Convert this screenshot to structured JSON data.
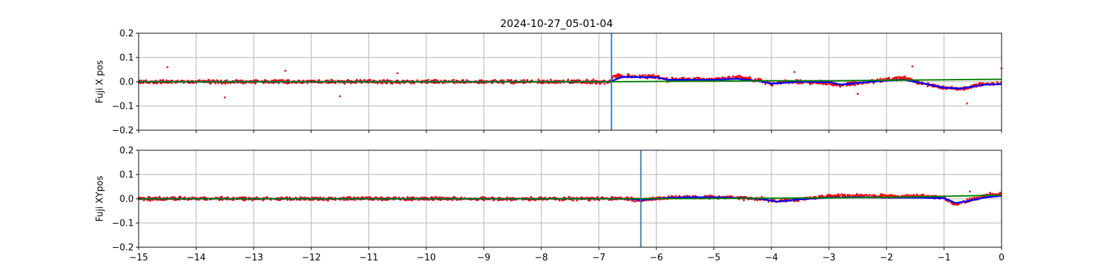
{
  "title": "2024-10-27_05-01-04",
  "colors": {
    "scatter": "#ff0000",
    "smooth": "#0000ff",
    "baseline": "#008000",
    "marker_line": "#1f77b4",
    "grid": "#b0b0b0"
  },
  "chart_data": [
    {
      "type": "scatter",
      "ylabel": "Fuji X pos",
      "xlim": [
        -15,
        0
      ],
      "ylim": [
        -0.2,
        0.2
      ],
      "xticks": [
        -15,
        -14,
        -13,
        -12,
        -11,
        -10,
        -9,
        -8,
        -7,
        -6,
        -5,
        -4,
        -3,
        -2,
        -1,
        0
      ],
      "xtick_labels_visible": false,
      "yticks": [
        -0.2,
        -0.1,
        0.0,
        0.1,
        0.2
      ],
      "ytick_labels": [
        "−0.2",
        "−0.1",
        "0.0",
        "0.1",
        "0.2"
      ],
      "grid": true,
      "vertical_marker_x": -6.78,
      "series": [
        {
          "role": "scatter",
          "color": "#ff0000",
          "profile": [
            [
              -15,
              0.0
            ],
            [
              -7.0,
              0.0
            ],
            [
              -6.8,
              0.0
            ],
            [
              -6.75,
              0.025
            ],
            [
              -6.0,
              0.02
            ],
            [
              -5.8,
              0.008
            ],
            [
              -5.0,
              0.01
            ],
            [
              -4.6,
              0.02
            ],
            [
              -4.2,
              0.005
            ],
            [
              -4.0,
              -0.01
            ],
            [
              -3.8,
              0.0
            ],
            [
              -3.5,
              0.0
            ],
            [
              -3.0,
              -0.005
            ],
            [
              -2.8,
              -0.015
            ],
            [
              -2.5,
              -0.005
            ],
            [
              -2.0,
              0.01
            ],
            [
              -1.7,
              0.015
            ],
            [
              -1.4,
              -0.005
            ],
            [
              -1.0,
              -0.025
            ],
            [
              -0.7,
              -0.03
            ],
            [
              -0.3,
              -0.01
            ],
            [
              0.0,
              -0.005
            ]
          ],
          "noise": 0.011,
          "outliers": [
            [
              -14.5,
              0.06
            ],
            [
              -13.5,
              -0.065
            ],
            [
              -12.45,
              0.045
            ],
            [
              -11.5,
              -0.06
            ],
            [
              -10.5,
              0.035
            ],
            [
              -3.6,
              0.04
            ],
            [
              -2.5,
              -0.05
            ],
            [
              -1.55,
              0.063
            ],
            [
              -0.6,
              -0.09
            ],
            [
              0.0,
              0.055
            ]
          ]
        },
        {
          "role": "smooth",
          "color": "#0000ff",
          "points": [
            [
              -15,
              0.0
            ],
            [
              -7.0,
              0.0
            ],
            [
              -6.8,
              0.0
            ],
            [
              -6.6,
              0.02
            ],
            [
              -6.0,
              0.018
            ],
            [
              -5.8,
              0.008
            ],
            [
              -5.0,
              0.008
            ],
            [
              -4.6,
              0.012
            ],
            [
              -4.2,
              0.002
            ],
            [
              -4.0,
              -0.008
            ],
            [
              -3.5,
              0.0
            ],
            [
              -3.0,
              -0.002
            ],
            [
              -2.8,
              -0.012
            ],
            [
              -2.5,
              -0.005
            ],
            [
              -2.0,
              0.005
            ],
            [
              -1.7,
              0.008
            ],
            [
              -1.4,
              -0.005
            ],
            [
              -1.0,
              -0.025
            ],
            [
              -0.7,
              -0.028
            ],
            [
              -0.3,
              -0.012
            ],
            [
              0.0,
              -0.01
            ]
          ]
        },
        {
          "role": "baseline",
          "color": "#008000",
          "points": [
            [
              -15,
              0.0
            ],
            [
              -7.0,
              0.0
            ],
            [
              -6.78,
              0.0
            ],
            [
              -4.0,
              0.004
            ],
            [
              -3.0,
              0.004
            ],
            [
              -2.0,
              0.006
            ],
            [
              -1.0,
              0.008
            ],
            [
              0.0,
              0.01
            ]
          ]
        }
      ]
    },
    {
      "type": "scatter",
      "ylabel": "Fuji XYpos",
      "xlim": [
        -15,
        0
      ],
      "ylim": [
        -0.2,
        0.2
      ],
      "xticks": [
        -15,
        -14,
        -13,
        -12,
        -11,
        -10,
        -9,
        -8,
        -7,
        -6,
        -5,
        -4,
        -3,
        -2,
        -1,
        0
      ],
      "xtick_labels": [
        "−15",
        "−14",
        "−13",
        "−12",
        "−11",
        "−10",
        "−9",
        "−8",
        "−7",
        "−6",
        "−5",
        "−4",
        "−3",
        "−2",
        "−1",
        "0"
      ],
      "xtick_labels_visible": true,
      "yticks": [
        -0.2,
        -0.1,
        0.0,
        0.1,
        0.2
      ],
      "ytick_labels": [
        "−0.2",
        "−0.1",
        "0.0",
        "0.1",
        "0.2"
      ],
      "grid": true,
      "vertical_marker_x": -6.27,
      "series": [
        {
          "role": "scatter",
          "color": "#ff0000",
          "profile": [
            [
              -15,
              0.0
            ],
            [
              -6.5,
              0.0
            ],
            [
              -6.27,
              -0.005
            ],
            [
              -5.9,
              0.002
            ],
            [
              -5.5,
              0.008
            ],
            [
              -5.0,
              0.008
            ],
            [
              -4.2,
              0.0
            ],
            [
              -3.9,
              -0.01
            ],
            [
              -3.5,
              -0.002
            ],
            [
              -3.0,
              0.012
            ],
            [
              -2.5,
              0.012
            ],
            [
              -2.0,
              0.01
            ],
            [
              -1.5,
              0.01
            ],
            [
              -1.0,
              0.005
            ],
            [
              -0.8,
              -0.025
            ],
            [
              -0.6,
              -0.01
            ],
            [
              -0.3,
              0.012
            ],
            [
              0.0,
              0.02
            ]
          ],
          "noise": 0.01,
          "outliers": [
            [
              -0.55,
              0.03
            ],
            [
              -0.2,
              0.025
            ]
          ]
        },
        {
          "role": "smooth",
          "color": "#0000ff",
          "points": [
            [
              -15,
              0.0
            ],
            [
              -6.5,
              0.0
            ],
            [
              -6.27,
              -0.005
            ],
            [
              -5.9,
              0.002
            ],
            [
              -5.5,
              0.006
            ],
            [
              -5.0,
              0.006
            ],
            [
              -4.2,
              0.0
            ],
            [
              -3.9,
              -0.012
            ],
            [
              -3.5,
              -0.002
            ],
            [
              -3.0,
              0.005
            ],
            [
              -2.5,
              0.006
            ],
            [
              -2.0,
              0.005
            ],
            [
              -1.5,
              0.005
            ],
            [
              -1.0,
              0.002
            ],
            [
              -0.8,
              -0.018
            ],
            [
              -0.6,
              -0.01
            ],
            [
              -0.3,
              0.005
            ],
            [
              0.0,
              0.012
            ]
          ]
        },
        {
          "role": "baseline",
          "color": "#008000",
          "points": [
            [
              -15,
              0.0
            ],
            [
              -6.27,
              0.0
            ],
            [
              -4.0,
              0.002
            ],
            [
              -3.0,
              0.004
            ],
            [
              -2.0,
              0.006
            ],
            [
              -1.0,
              0.01
            ],
            [
              0.0,
              0.015
            ]
          ]
        }
      ]
    }
  ]
}
